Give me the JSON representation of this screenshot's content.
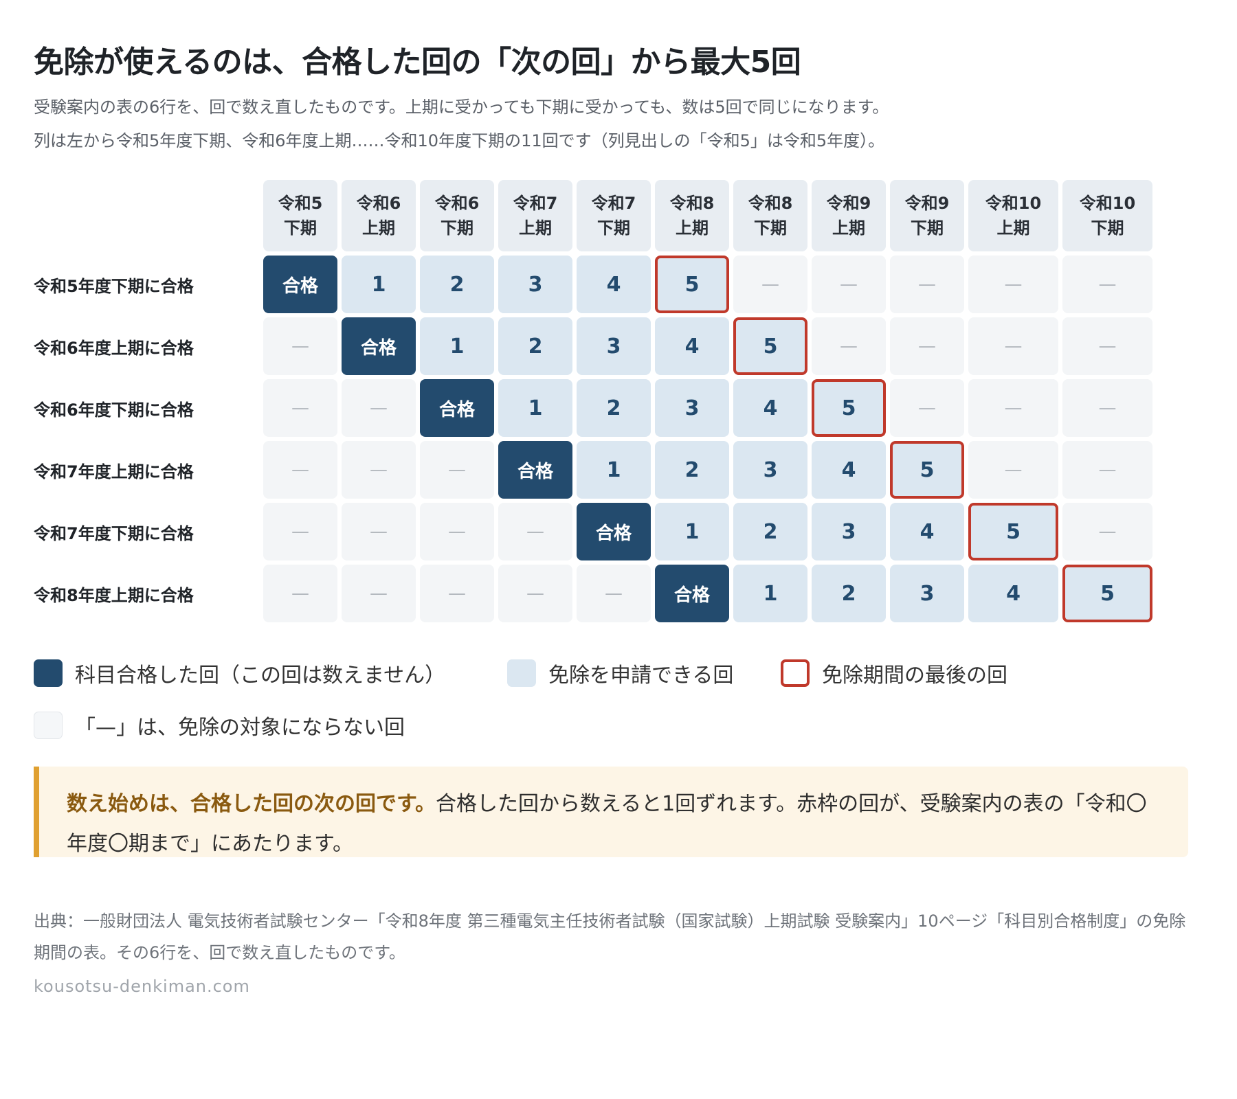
{
  "title": "免除が使えるのは、合格した回の「次の回」から最大5回",
  "subtitle_line1": "受験案内の表の6行を、回で数え直したものです。上期に受かっても下期に受かっても、数は5回で同じになります。",
  "subtitle_line2": "列は左から令和5年度下期、令和6年度上期……令和10年度下期の11回です（列見出しの「令和5」は令和5年度）。",
  "table": {
    "columns": [
      [
        "令和5",
        "下期"
      ],
      [
        "令和6",
        "上期"
      ],
      [
        "令和6",
        "下期"
      ],
      [
        "令和7",
        "上期"
      ],
      [
        "令和7",
        "下期"
      ],
      [
        "令和8",
        "上期"
      ],
      [
        "令和8",
        "下期"
      ],
      [
        "令和9",
        "上期"
      ],
      [
        "令和9",
        "下期"
      ],
      [
        "令和10",
        "上期"
      ],
      [
        "令和10",
        "下期"
      ]
    ],
    "rows": [
      {
        "label": "令和5年度下期に合格",
        "cells": [
          "合格",
          "1",
          "2",
          "3",
          "4",
          "5",
          "—",
          "—",
          "—",
          "—",
          "—"
        ]
      },
      {
        "label": "令和6年度上期に合格",
        "cells": [
          "—",
          "合格",
          "1",
          "2",
          "3",
          "4",
          "5",
          "—",
          "—",
          "—",
          "—"
        ]
      },
      {
        "label": "令和6年度下期に合格",
        "cells": [
          "—",
          "—",
          "合格",
          "1",
          "2",
          "3",
          "4",
          "5",
          "—",
          "—",
          "—"
        ]
      },
      {
        "label": "令和7年度上期に合格",
        "cells": [
          "—",
          "—",
          "—",
          "合格",
          "1",
          "2",
          "3",
          "4",
          "5",
          "—",
          "—"
        ]
      },
      {
        "label": "令和7年度下期に合格",
        "cells": [
          "—",
          "—",
          "—",
          "—",
          "合格",
          "1",
          "2",
          "3",
          "4",
          "5",
          "—"
        ]
      },
      {
        "label": "令和8年度上期に合格",
        "cells": [
          "—",
          "—",
          "—",
          "—",
          "—",
          "合格",
          "1",
          "2",
          "3",
          "4",
          "5"
        ]
      }
    ]
  },
  "legend": {
    "pass": "科目合格した回（この回は数えません）",
    "avail": "免除を申請できる回",
    "last": "免除期間の最後の回",
    "na": "「—」は、免除の対象にならない回"
  },
  "note": {
    "bold": "数え始めは、合格した回の次の回です。",
    "text": "合格した回から数えると1回ずれます。赤枠の回が、受験案内の表の「令和〇年度〇期まで」にあたります。"
  },
  "source": "出典：一般財団法人 電気技術者試験センター「令和8年度 第三種電気主任技術者試験（国家試験）上期試験 受験案内」10ページ「科目別合格制度」の免除期間の表。その6行を、回で数え直したものです。",
  "site": "kousotsu-denkiman.com",
  "colors": {
    "pass": "#234b6e",
    "avail": "#dbe7f1",
    "last_border": "#c0392b",
    "na": "#f3f5f7",
    "note_bg": "#fdf5e6",
    "note_accent": "#e0a030"
  }
}
